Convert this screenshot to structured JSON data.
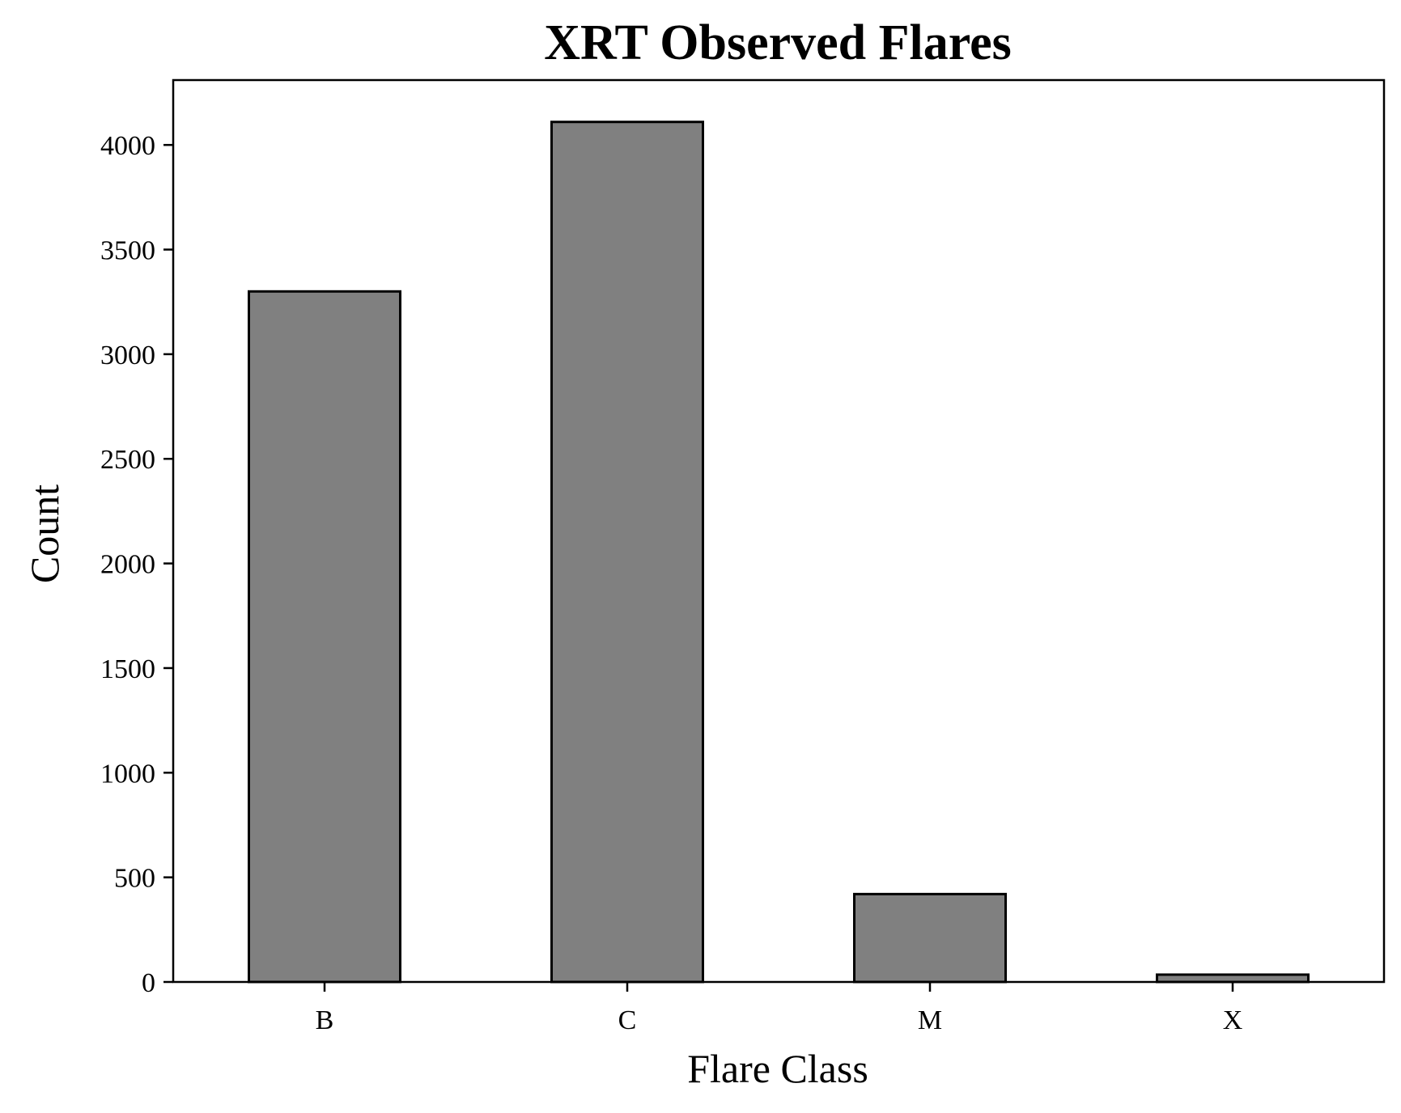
{
  "chart_data": {
    "type": "bar",
    "title": "XRT Observed Flares",
    "xlabel": "Flare Class",
    "ylabel": "Count",
    "categories": [
      "B",
      "C",
      "M",
      "X"
    ],
    "values": [
      3300,
      4110,
      420,
      35
    ],
    "ylim": [
      0,
      4310
    ],
    "yticks": [
      0,
      500,
      1000,
      1500,
      2000,
      2500,
      3000,
      3500,
      4000
    ],
    "grid": false,
    "legend": "none",
    "bar_color": "#808080",
    "edge_color": "#000000"
  }
}
